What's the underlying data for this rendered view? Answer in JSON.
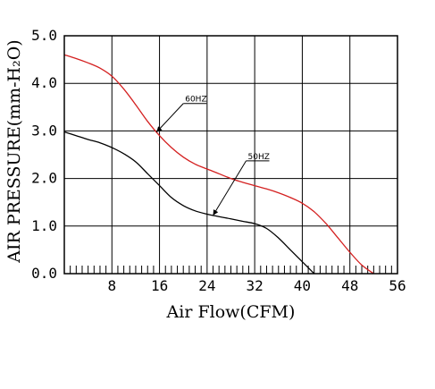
{
  "chart_data": {
    "type": "line",
    "xlabel": "Air Flow(CFM)",
    "ylabel": "AIR PRESSURE(mm-H₂O)",
    "xlim": [
      0,
      56
    ],
    "ylim": [
      0,
      5
    ],
    "x_ticks": [
      8,
      16,
      24,
      32,
      40,
      48,
      56
    ],
    "y_ticks": [
      0,
      1,
      2,
      3,
      4,
      5
    ],
    "x_tick_labels": [
      "8",
      "16",
      "24",
      "32",
      "40",
      "48",
      "56"
    ],
    "y_tick_labels": [
      "0.0",
      "1.0",
      "2.0",
      "3.0",
      "4.0",
      "5.0"
    ],
    "grid": true,
    "series": [
      {
        "name": "60HZ",
        "color": "#d42020",
        "x": [
          0,
          2,
          4,
          6,
          8,
          10,
          12,
          14,
          16,
          18,
          20,
          22,
          24,
          26,
          28,
          30,
          32,
          34,
          36,
          38,
          40,
          42,
          44,
          46,
          48,
          50,
          52
        ],
        "y": [
          4.6,
          4.52,
          4.43,
          4.32,
          4.15,
          3.88,
          3.55,
          3.2,
          2.9,
          2.65,
          2.45,
          2.3,
          2.2,
          2.1,
          2.0,
          1.92,
          1.85,
          1.78,
          1.7,
          1.6,
          1.48,
          1.3,
          1.05,
          0.75,
          0.45,
          0.18,
          0.0
        ]
      },
      {
        "name": "50HZ",
        "color": "#000000",
        "x": [
          0,
          2,
          4,
          6,
          8,
          10,
          12,
          14,
          16,
          18,
          20,
          22,
          24,
          26,
          28,
          30,
          32,
          34,
          36,
          38,
          40,
          42
        ],
        "y": [
          2.98,
          2.9,
          2.82,
          2.75,
          2.65,
          2.52,
          2.35,
          2.1,
          1.85,
          1.6,
          1.43,
          1.32,
          1.25,
          1.2,
          1.15,
          1.1,
          1.05,
          0.95,
          0.75,
          0.5,
          0.25,
          0.0
        ]
      }
    ],
    "annotations": [
      {
        "text": "60HZ",
        "series": "60HZ",
        "at_x": 15.5
      },
      {
        "text": "50HZ",
        "series": "50HZ",
        "at_x": 25
      }
    ]
  }
}
